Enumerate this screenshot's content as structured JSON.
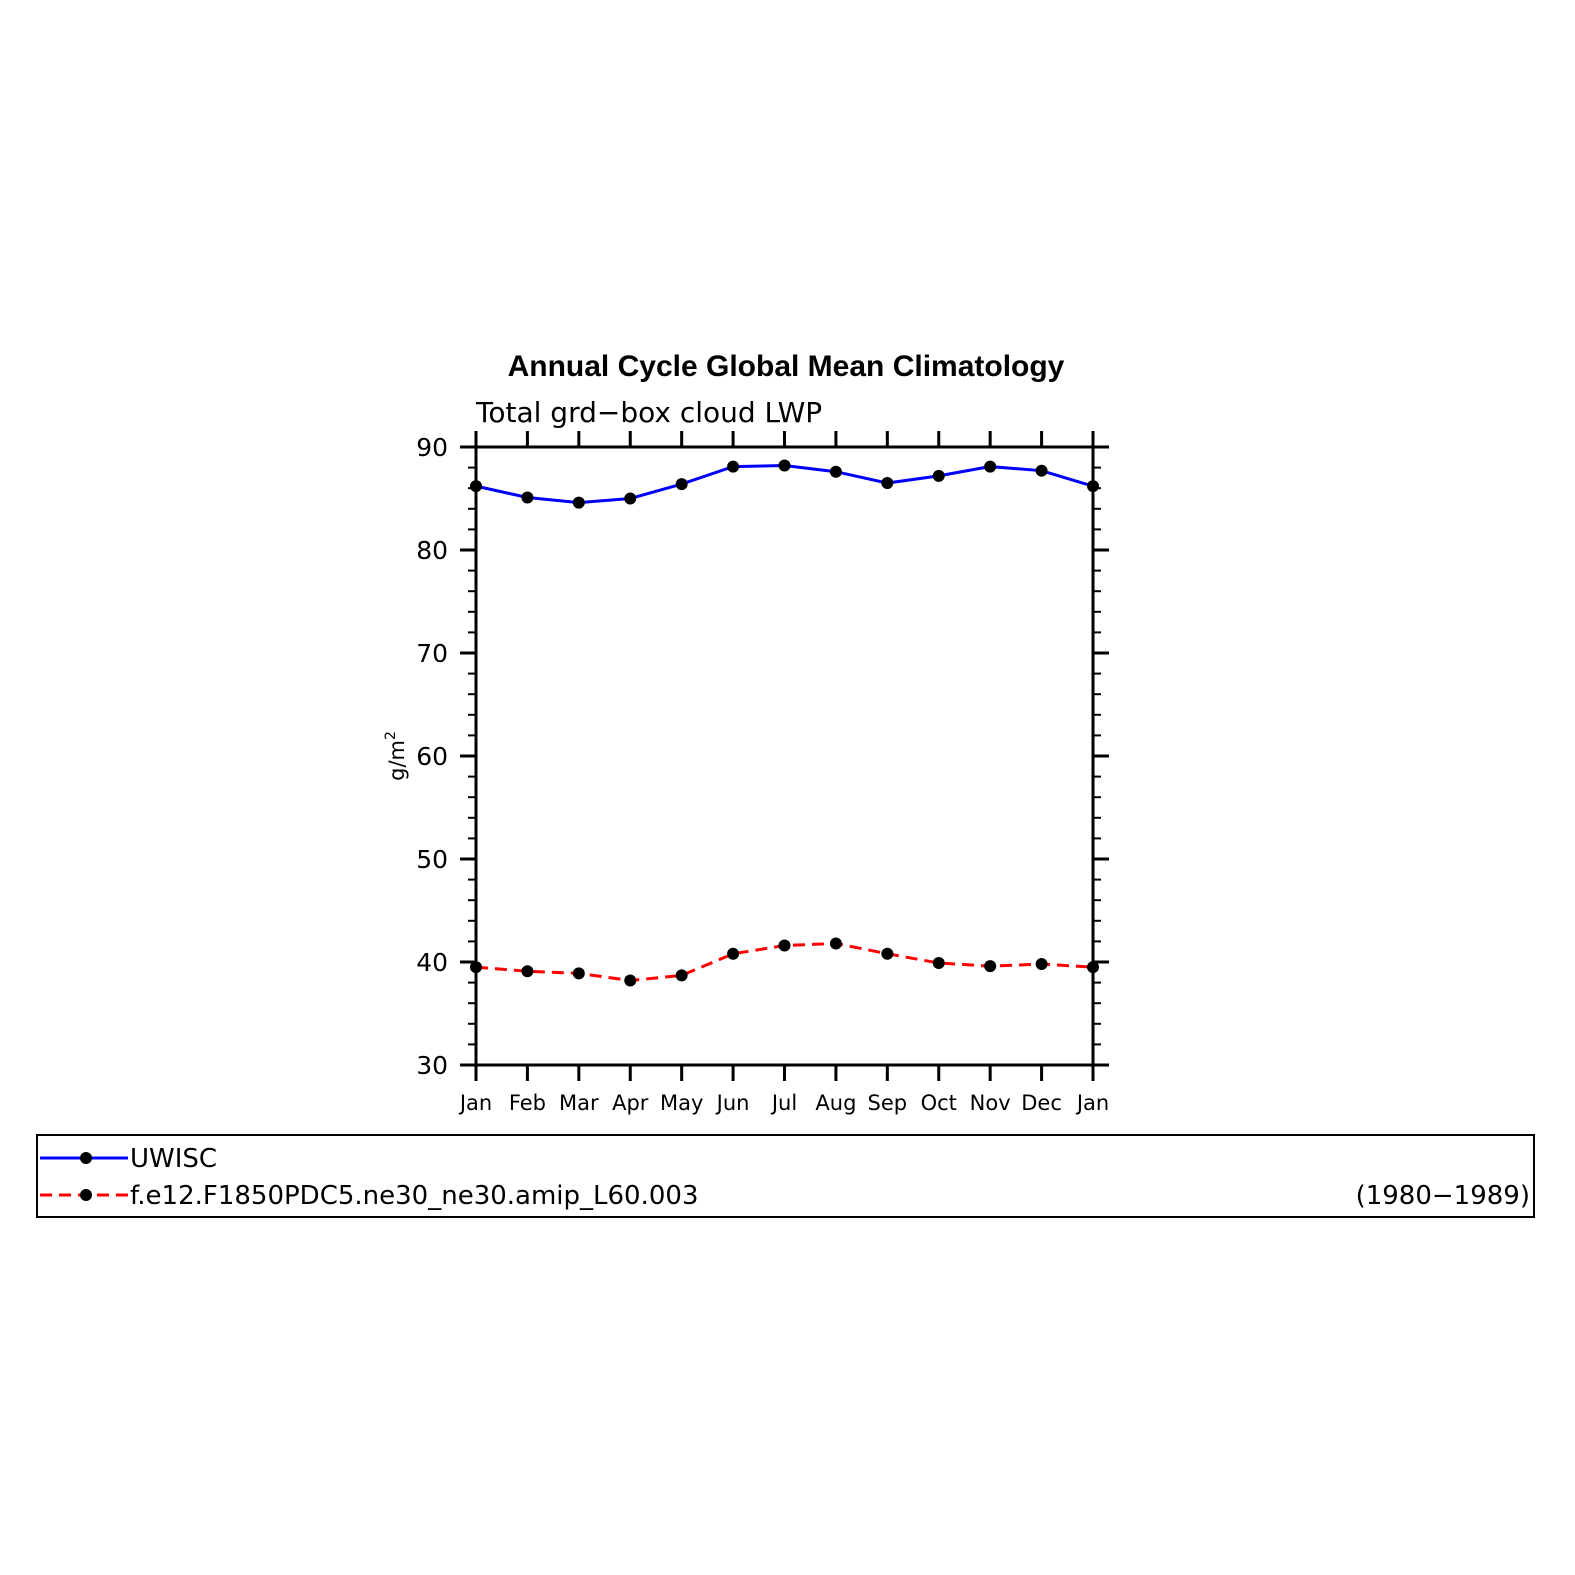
{
  "chart_data": {
    "type": "line",
    "title": "Annual Cycle Global Mean Climatology",
    "subtitle": "Total grd−box cloud LWP",
    "ylabel": "g/m",
    "ylabel_sup": "2",
    "ylim": [
      30,
      90
    ],
    "yticks": [
      "30",
      "40",
      "50",
      "60",
      "70",
      "80",
      "90"
    ],
    "categories": [
      "Jan",
      "Feb",
      "Mar",
      "Apr",
      "May",
      "Jun",
      "Jul",
      "Aug",
      "Sep",
      "Oct",
      "Nov",
      "Dec",
      "Jan"
    ],
    "series": [
      {
        "name": "UWISC",
        "color": "#0000ff",
        "dash": "solid",
        "values": [
          86.2,
          85.1,
          84.6,
          85.0,
          86.4,
          88.1,
          88.2,
          87.6,
          86.5,
          87.2,
          88.1,
          87.7,
          86.2
        ]
      },
      {
        "name": "f.e12.F1850PDC5.ne30_ne30.amip_L60.003",
        "color": "#ff0000",
        "dash": "dashed",
        "values": [
          39.5,
          39.1,
          38.9,
          38.2,
          38.7,
          40.8,
          41.6,
          41.8,
          40.8,
          39.9,
          39.6,
          39.8,
          39.5
        ]
      }
    ],
    "marker_color": "#000000",
    "legend_note": "(1980−1989)",
    "legend_position": "bottom"
  }
}
